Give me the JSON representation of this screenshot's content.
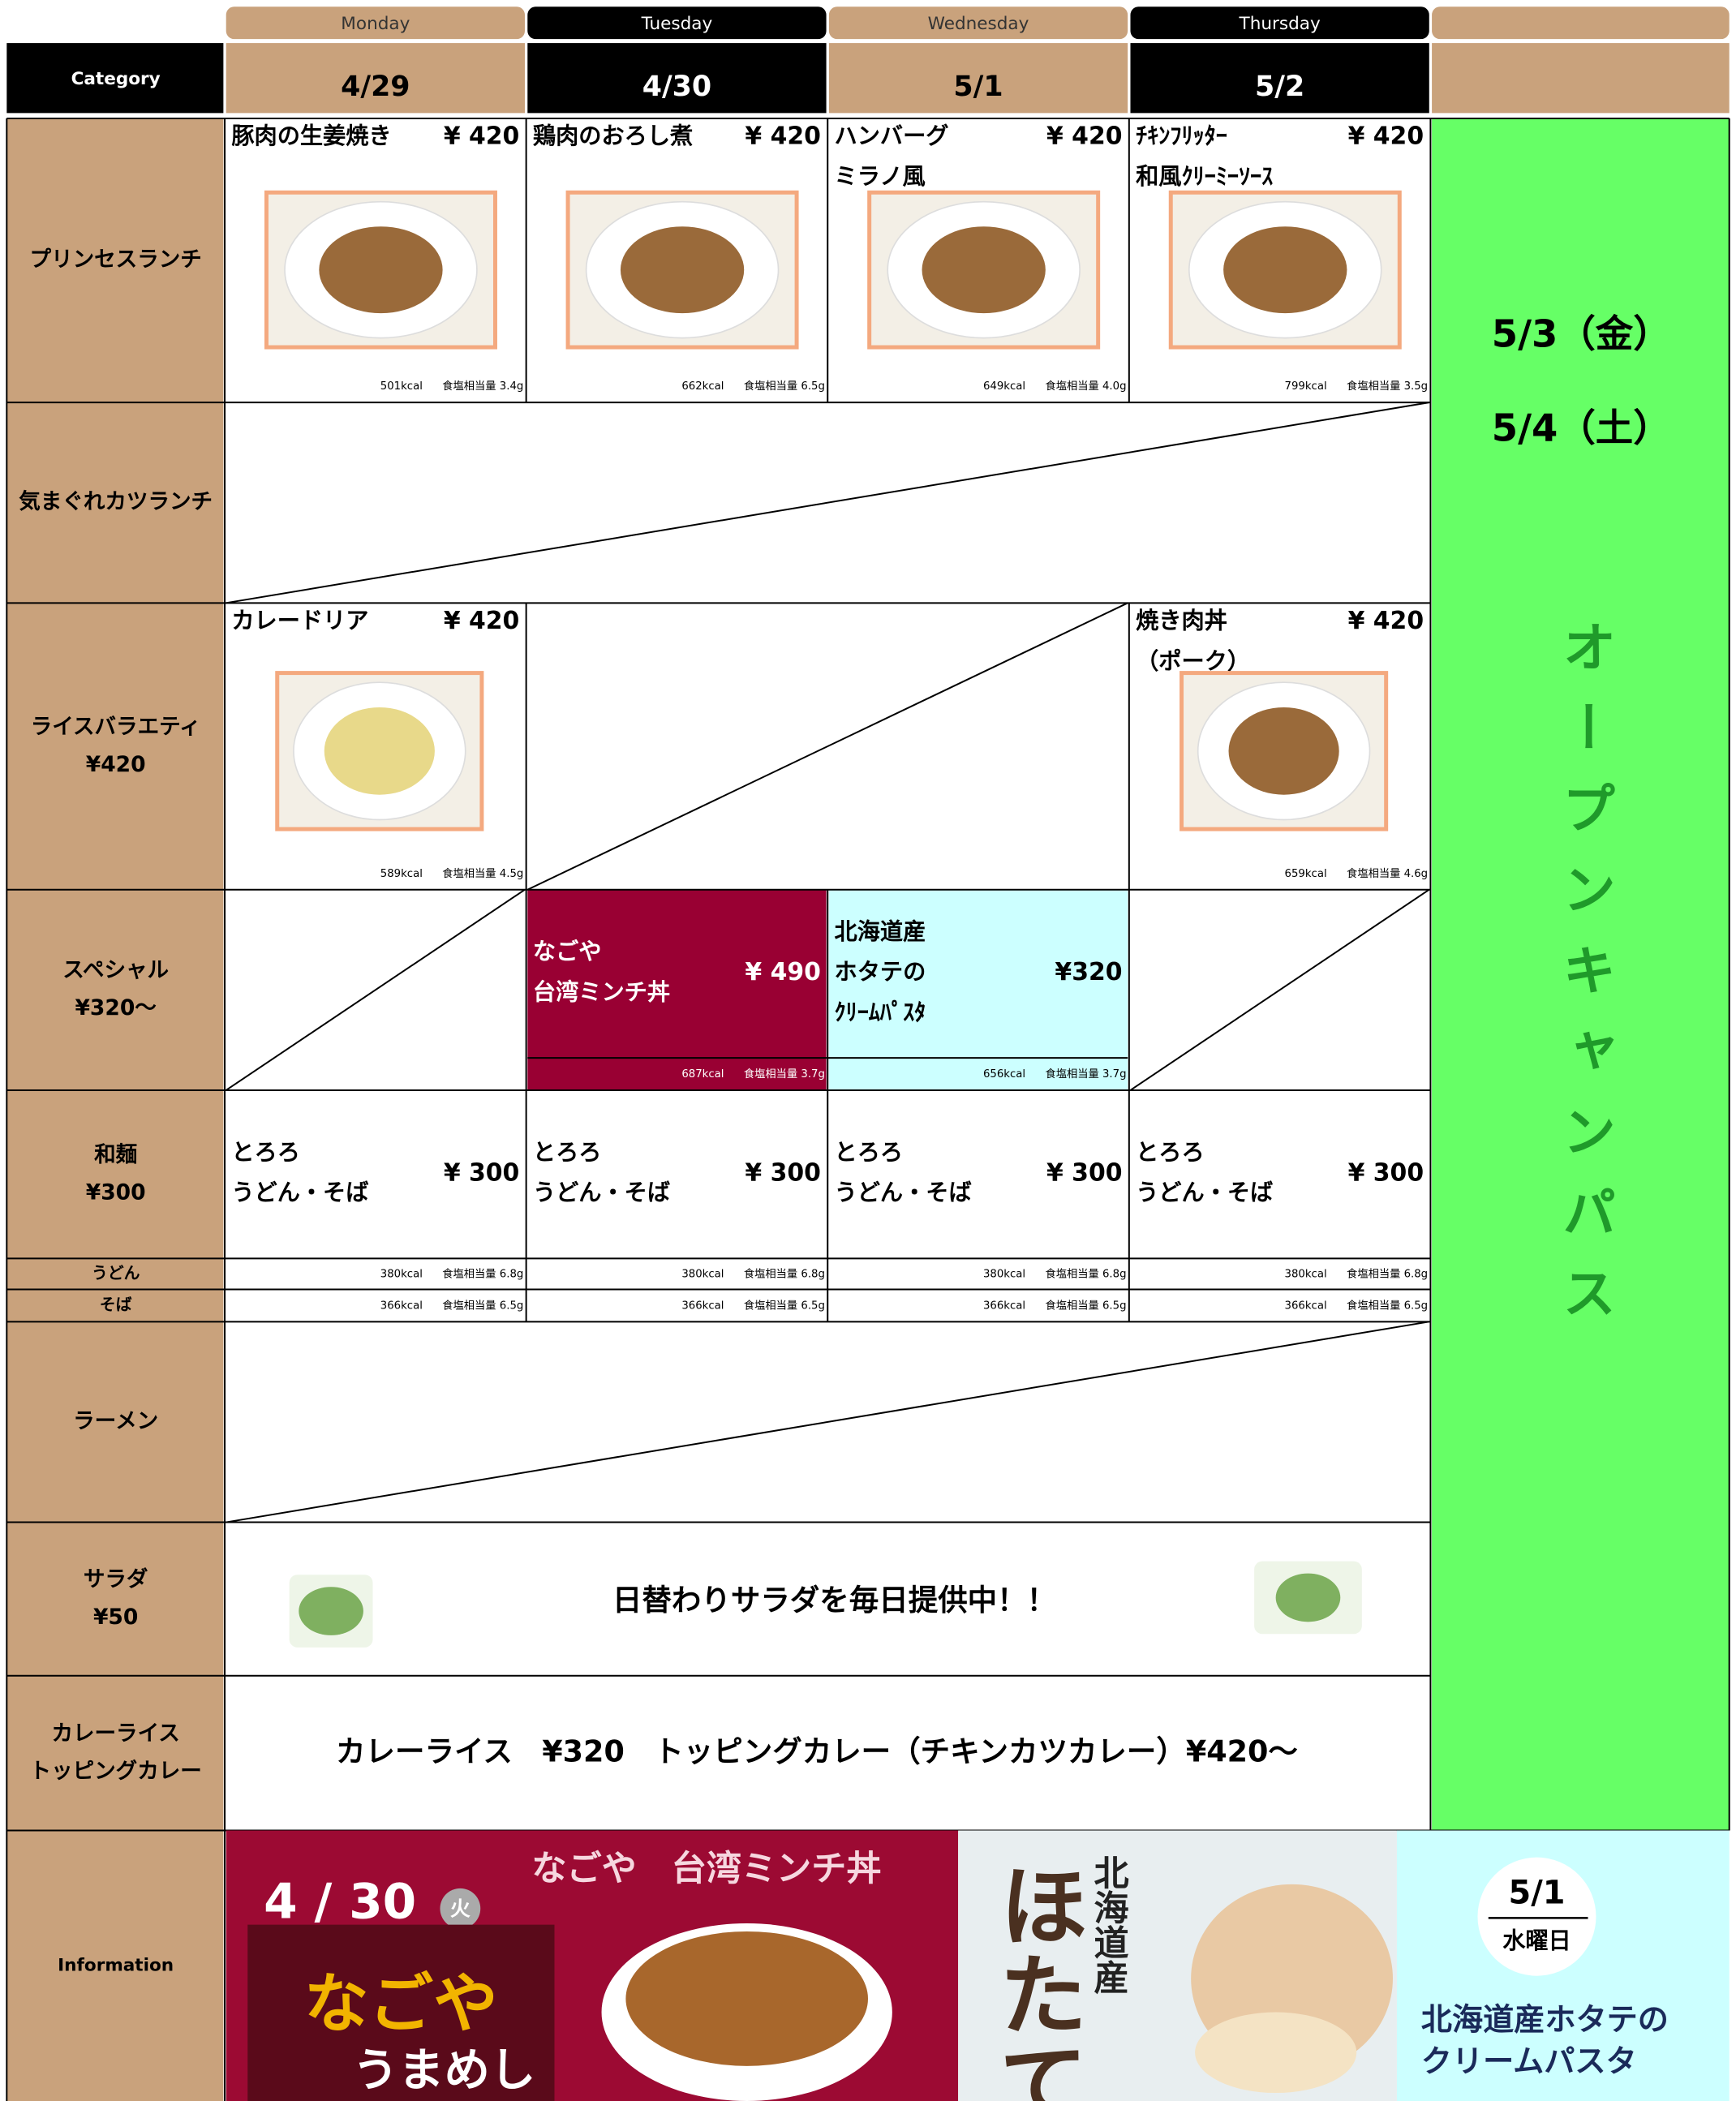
{
  "header": {
    "category": "Category",
    "days": [
      "Monday",
      "Tuesday",
      "Wednesday",
      "Thursday"
    ],
    "dates": [
      "4/29",
      "4/30",
      "5/1",
      "5/2"
    ]
  },
  "rows": [
    {
      "label": [
        "プリンセスランチ"
      ],
      "cells": [
        {
          "name": [
            "豚肉の生姜焼き"
          ],
          "price": "¥ 420",
          "kcal": "501kcal",
          "salt": "食塩相当量 3.4g"
        },
        {
          "name": [
            "鶏肉のおろし煮"
          ],
          "price": "¥ 420",
          "kcal": "662kcal",
          "salt": "食塩相当量 6.5g"
        },
        {
          "name": [
            "ハンバーグ",
            "ミラノ風"
          ],
          "price": "¥ 420",
          "kcal": "649kcal",
          "salt": "食塩相当量 4.0g"
        },
        {
          "name": [
            "ﾁｷﾝﾌﾘｯﾀｰ",
            "和風ｸﾘｰﾐｰｿｰｽ"
          ],
          "price": "¥ 420",
          "kcal": "799kcal",
          "salt": "食塩相当量 3.5g"
        }
      ]
    },
    {
      "label": [
        "気まぐれカツランチ"
      ]
    },
    {
      "label": [
        "ライスバラエティ",
        "¥420"
      ],
      "cells": [
        {
          "name": [
            "カレードリア"
          ],
          "price": "¥ 420",
          "kcal": "589kcal",
          "salt": "食塩相当量 4.5g"
        },
        null,
        null,
        {
          "name": [
            "焼き肉丼",
            "（ポーク）"
          ],
          "price": "¥ 420",
          "kcal": "659kcal",
          "salt": "食塩相当量 4.6g"
        }
      ]
    },
    {
      "label": [
        "スペシャル",
        "¥320～"
      ],
      "cells": [
        null,
        {
          "name": [
            "なごや",
            "台湾ミンチ丼"
          ],
          "price": "¥ 490",
          "kcal": "687kcal",
          "salt": "食塩相当量 3.7g"
        },
        {
          "name": [
            "北海道産",
            "ホタテの",
            "ｸﾘｰﾑﾊﾟｽﾀ"
          ],
          "price": "¥320",
          "kcal": "656kcal",
          "salt": "食塩相当量 3.7g"
        },
        null
      ]
    },
    {
      "label": [
        "和麺",
        "¥300"
      ],
      "cells": [
        {
          "name": [
            "とろろ",
            "うどん・そば"
          ],
          "price": "¥ 300"
        },
        {
          "name": [
            "とろろ",
            "うどん・そば"
          ],
          "price": "¥ 300"
        },
        {
          "name": [
            "とろろ",
            "うどん・そば"
          ],
          "price": "¥ 300"
        },
        {
          "name": [
            "とろろ",
            "うどん・そば"
          ],
          "price": "¥ 300"
        }
      ]
    },
    {
      "label": [
        "うどん"
      ],
      "cells": [
        {
          "kcal": "380kcal",
          "salt": "食塩相当量 6.8g"
        },
        {
          "kcal": "380kcal",
          "salt": "食塩相当量 6.8g"
        },
        {
          "kcal": "380kcal",
          "salt": "食塩相当量 6.8g"
        },
        {
          "kcal": "380kcal",
          "salt": "食塩相当量 6.8g"
        }
      ]
    },
    {
      "label": [
        "そば"
      ],
      "cells": [
        {
          "kcal": "366kcal",
          "salt": "食塩相当量 6.5g"
        },
        {
          "kcal": "366kcal",
          "salt": "食塩相当量 6.5g"
        },
        {
          "kcal": "366kcal",
          "salt": "食塩相当量 6.5g"
        },
        {
          "kcal": "366kcal",
          "salt": "食塩相当量 6.5g"
        }
      ]
    },
    {
      "label": [
        "ラーメン"
      ]
    },
    {
      "label": [
        "サラダ",
        "¥50"
      ],
      "text": "日替わりサラダを毎日提供中！！"
    },
    {
      "label": [
        "カレーライス",
        "トッピングカレー"
      ],
      "text": "カレーライス　¥320　トッピングカレー（チキンカツカレー）¥420～"
    },
    {
      "label": [
        "Information"
      ]
    }
  ],
  "closed": {
    "dates": [
      "5/3（金）",
      "5/4（土）"
    ],
    "event": "オープンキャンパス"
  },
  "info": {
    "nagoya": {
      "date": "4 / 30",
      "weekday": "火",
      "title": "なごや　台湾ミンチ丼",
      "logo": "なごや",
      "logo_sub": "うまめし"
    },
    "hotate": {
      "title": "ほたて",
      "origin": "北海道産"
    },
    "pasta": {
      "date": "5/1",
      "weekday": "水曜日",
      "text": [
        "北海道産ホタテの",
        "クリームパスタ"
      ]
    }
  }
}
